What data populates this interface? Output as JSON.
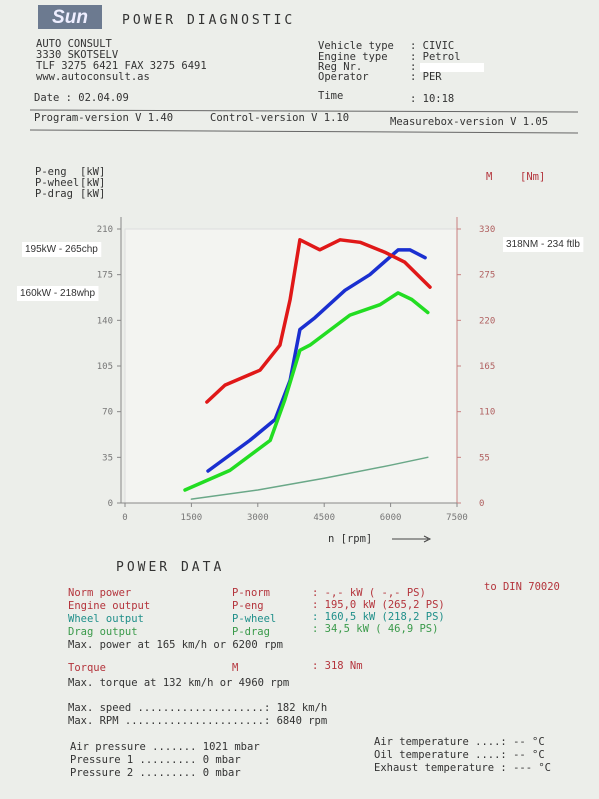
{
  "header": {
    "logo": "Sun",
    "title": "POWER DIAGNOSTIC"
  },
  "shop": [
    "AUTO CONSULT",
    "3330 SKOTSELV",
    "TLF 3275 6421 FAX 3275 6491",
    "www.autoconsult.as"
  ],
  "vehicle": [
    {
      "label": "Vehicle type",
      "value": ": CIVIC"
    },
    {
      "label": "Engine type",
      "value": ": Petrol"
    },
    {
      "label": "Reg Nr.",
      "value": ":"
    },
    {
      "label": "Operator",
      "value": ": PER"
    }
  ],
  "date": "Date  :  02.04.09",
  "time": {
    "label": "Time",
    "value": ":  10:18"
  },
  "versions": [
    "Program-version V 1.40",
    "Control-version V 1.10",
    "Measurebox-version V 1.05"
  ],
  "chart_data": {
    "type": "line",
    "x_label": "n [rpm]",
    "y2_label": "M",
    "y2_unit": "[Nm]",
    "xlim": [
      0,
      7500
    ],
    "xticks": [
      0,
      1500,
      3000,
      4500,
      6000,
      7500
    ],
    "ylim": [
      0,
      210
    ],
    "yticks": [
      0,
      35,
      70,
      105,
      140,
      175,
      210
    ],
    "y2lim": [
      0,
      330
    ],
    "y2ticks": [
      0,
      55,
      110,
      165,
      220,
      275,
      330
    ],
    "series": [
      {
        "name": "P-eng",
        "unit": "[kW]",
        "legend_color": "#c0343c",
        "color": "#1a2fd0",
        "x": [
          1875,
          2820,
          3390,
          3730,
          3950,
          4290,
          4970,
          5530,
          6170,
          6440,
          6780
        ],
        "values": [
          24.5,
          48,
          64,
          94,
          133,
          142,
          163,
          175,
          194,
          194,
          188
        ]
      },
      {
        "name": "P-wheel",
        "unit": "[kW]",
        "legend_color": "#3a55c0",
        "color": "#22dd22",
        "x": [
          1355,
          2370,
          3280,
          3610,
          3950,
          4180,
          5080,
          5760,
          6170,
          6480,
          6840
        ],
        "values": [
          10,
          25,
          48,
          79,
          117,
          121,
          144,
          152,
          161,
          156,
          146
        ]
      },
      {
        "name": "P-drag",
        "unit": "[kW]",
        "legend_color": "#2a9a4a",
        "color": "#6aa888",
        "x": [
          1500,
          3000,
          4500,
          6000,
          6840
        ],
        "values": [
          3,
          10,
          19,
          29,
          35
        ]
      },
      {
        "name": "M",
        "axis": "y2",
        "color": "#e01818",
        "x": [
          1850,
          2260,
          3050,
          3500,
          3730,
          3950,
          4400,
          4860,
          5310,
          5870,
          6320,
          6890
        ],
        "values": [
          121.7,
          142,
          160,
          190,
          245,
          317,
          305,
          317,
          314,
          302,
          290,
          260
        ]
      }
    ],
    "annotations": [
      {
        "text": "195kW - 265chp",
        "color": "#3030c0"
      },
      {
        "text": "160kW - 218whp",
        "color": "#22aa22"
      },
      {
        "text": "318NM - 234 ftlb",
        "color": "#e01818"
      }
    ]
  },
  "power_data": {
    "title": "POWER DATA",
    "rows": [
      {
        "label": "Norm power",
        "symbol": "P-norm",
        "value": ":   -,- kW (  -,- PS)",
        "note": "to DIN 70020"
      },
      {
        "label": "Engine output",
        "symbol": "P-eng",
        "value": ": 195,0 kW (265,2 PS)"
      },
      {
        "label": "Wheel output",
        "symbol": "P-wheel",
        "value": ": 160,5 kW (218,2 PS)"
      },
      {
        "label": "Drag output",
        "symbol": "P-drag",
        "value": ":  34,5 kW ( 46,9 PS)"
      }
    ],
    "max_power": "Max. power at 165 km/h or  6200 rpm",
    "torque": {
      "label": "Torque",
      "symbol": "M",
      "value": ":   318 Nm"
    },
    "max_torque": "Max. torque at 132 km/h or  4960 rpm",
    "max_speed": "Max. speed  ....................:   182 km/h",
    "max_rpm": "Max. RPM  ......................:  6840 rpm",
    "pressures": [
      "Air pressure .......  1021 mbar",
      "Pressure 1 .........     0 mbar",
      "Pressure 2 .........     0 mbar"
    ],
    "temperatures": [
      "Air temperature ....:     -- °C",
      "Oil temperature ....:     -- °C",
      "Exhaust temperature :    --- °C"
    ]
  }
}
